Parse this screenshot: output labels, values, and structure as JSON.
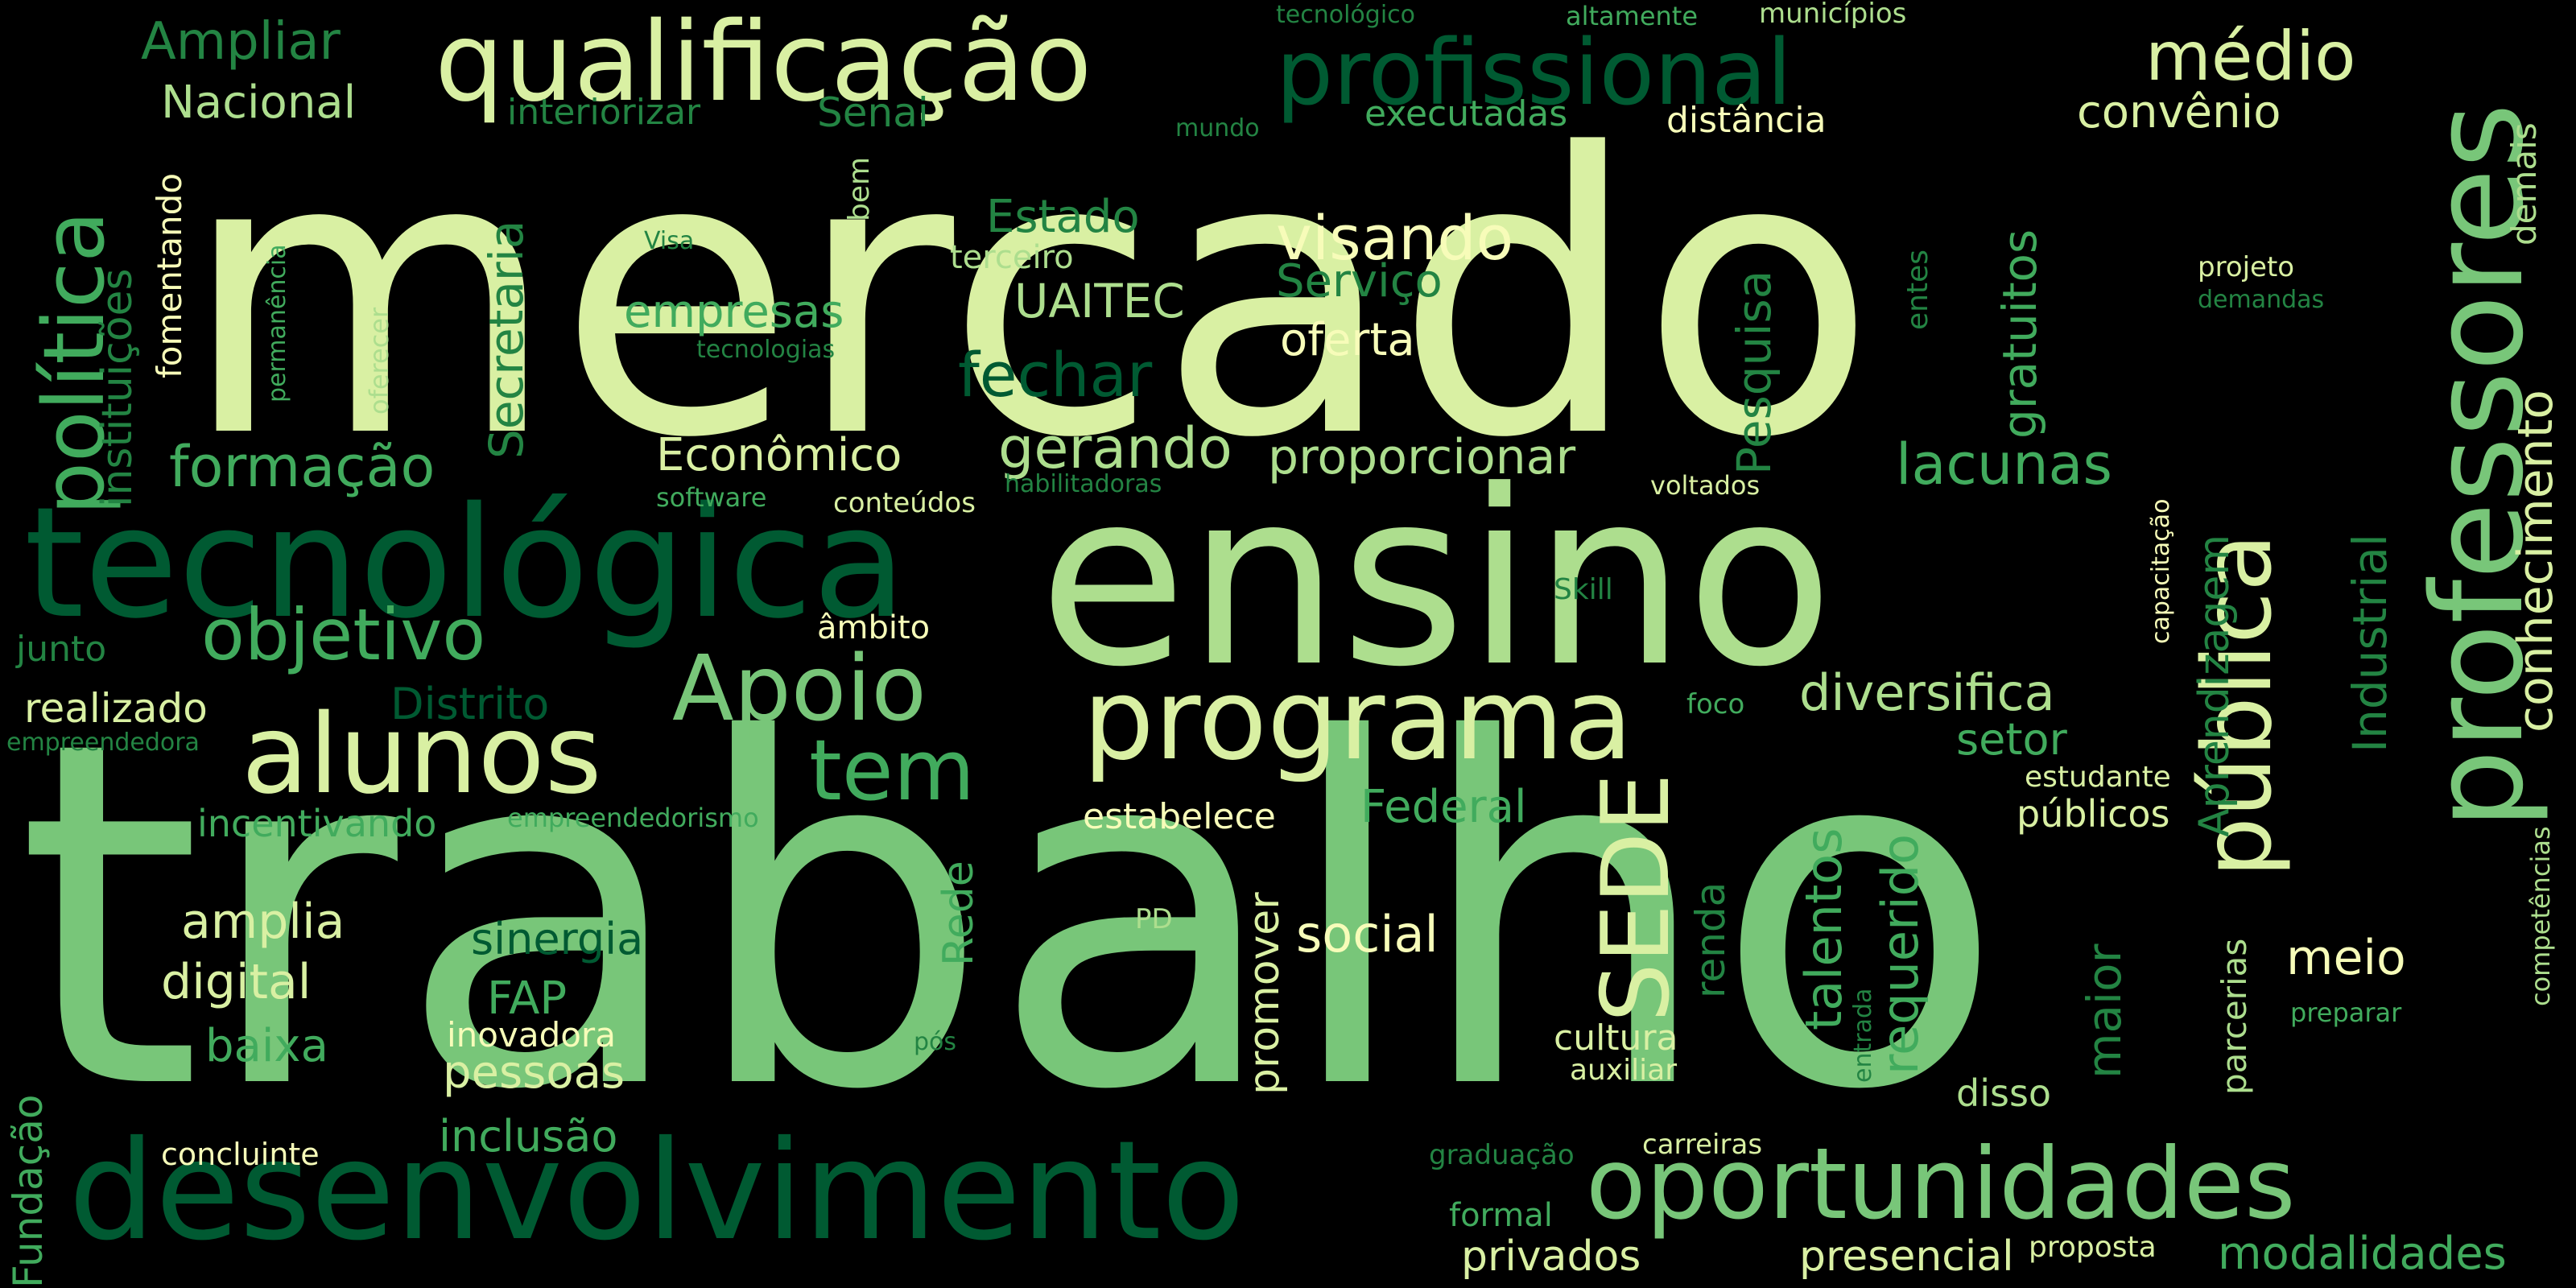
{
  "palette": {
    "background": "#000000",
    "pale": "#d9f0a3",
    "light": "#adde8e",
    "mid": "#78c679",
    "medium": "#41ab5d",
    "dark": "#238443",
    "deep": "#005a32",
    "cream": "#f7fcb9"
  },
  "words": [
    {
      "text": "mercado",
      "tone": "pale"
    },
    {
      "text": "trabalho",
      "tone": "mid"
    },
    {
      "text": "ensino",
      "tone": "light"
    },
    {
      "text": "tecnológica",
      "tone": "deep"
    },
    {
      "text": "desenvolvimento",
      "tone": "deep"
    },
    {
      "text": "qualificação",
      "tone": "pale"
    },
    {
      "text": "profissional",
      "tone": "deep"
    },
    {
      "text": "professores",
      "tone": "mid"
    },
    {
      "text": "política",
      "tone": "medium"
    },
    {
      "text": "programa",
      "tone": "pale"
    },
    {
      "text": "alunos",
      "tone": "pale"
    },
    {
      "text": "oportunidades",
      "tone": "mid"
    },
    {
      "text": "pública",
      "tone": "pale"
    },
    {
      "text": "Apoio",
      "tone": "mid"
    },
    {
      "text": "médio",
      "tone": "pale"
    },
    {
      "text": "objetivo",
      "tone": "medium"
    },
    {
      "text": "tem",
      "tone": "medium"
    },
    {
      "text": "visando",
      "tone": "cream"
    },
    {
      "text": "SEDE",
      "tone": "pale"
    },
    {
      "text": "instituições",
      "tone": "dark"
    },
    {
      "text": "Secretaria",
      "tone": "dark"
    },
    {
      "text": "Pesquisa",
      "tone": "dark"
    },
    {
      "text": "Ampliar",
      "tone": "dark"
    },
    {
      "text": "Nacional",
      "tone": "light"
    },
    {
      "text": "interiorizar",
      "tone": "dark"
    },
    {
      "text": "Senai",
      "tone": "dark"
    },
    {
      "text": "executadas",
      "tone": "medium"
    },
    {
      "text": "distância",
      "tone": "cream"
    },
    {
      "text": "convênio",
      "tone": "pale"
    },
    {
      "text": "tecnológico",
      "tone": "dark"
    },
    {
      "text": "altamente",
      "tone": "medium"
    },
    {
      "text": "municípios",
      "tone": "light"
    },
    {
      "text": "mundo",
      "tone": "dark"
    },
    {
      "text": "Estado",
      "tone": "dark"
    },
    {
      "text": "terceiro",
      "tone": "light"
    },
    {
      "text": "UAITEC",
      "tone": "light"
    },
    {
      "text": "Serviço",
      "tone": "dark"
    },
    {
      "text": "oferta",
      "tone": "cream"
    },
    {
      "text": "empresas",
      "tone": "medium"
    },
    {
      "text": "fechar",
      "tone": "deep"
    },
    {
      "text": "tecnologias",
      "tone": "dark"
    },
    {
      "text": "Visa",
      "tone": "dark"
    },
    {
      "text": "fomentando",
      "tone": "cream"
    },
    {
      "text": "permanência",
      "tone": "medium"
    },
    {
      "text": "oferecer",
      "tone": "light"
    },
    {
      "text": "bem",
      "tone": "light"
    },
    {
      "text": "entes",
      "tone": "dark"
    },
    {
      "text": "gratuitos",
      "tone": "medium"
    },
    {
      "text": "projeto",
      "tone": "pale"
    },
    {
      "text": "demandas",
      "tone": "dark"
    },
    {
      "text": "demais",
      "tone": "light"
    },
    {
      "text": "conhecimento",
      "tone": "pale"
    },
    {
      "text": "formação",
      "tone": "medium"
    },
    {
      "text": "Econômico",
      "tone": "pale"
    },
    {
      "text": "gerando",
      "tone": "light"
    },
    {
      "text": "proporcionar",
      "tone": "light"
    },
    {
      "text": "lacunas",
      "tone": "medium"
    },
    {
      "text": "software",
      "tone": "medium"
    },
    {
      "text": "conteúdos",
      "tone": "pale"
    },
    {
      "text": "habilitadoras",
      "tone": "dark"
    },
    {
      "text": "voltados",
      "tone": "pale"
    },
    {
      "text": "Aprendizagem",
      "tone": "dark"
    },
    {
      "text": "Industrial",
      "tone": "dark"
    },
    {
      "text": "capacitação",
      "tone": "cream"
    },
    {
      "text": "junto",
      "tone": "dark"
    },
    {
      "text": "âmbito",
      "tone": "cream"
    },
    {
      "text": "Skill",
      "tone": "dark"
    },
    {
      "text": "realizado",
      "tone": "pale"
    },
    {
      "text": "Distrito",
      "tone": "deep"
    },
    {
      "text": "diversifica",
      "tone": "light"
    },
    {
      "text": "foco",
      "tone": "medium"
    },
    {
      "text": "empreendedora",
      "tone": "dark"
    },
    {
      "text": "setor",
      "tone": "medium"
    },
    {
      "text": "estudante",
      "tone": "pale"
    },
    {
      "text": "incentivando",
      "tone": "medium"
    },
    {
      "text": "empreendedorismo",
      "tone": "medium"
    },
    {
      "text": "estabelece",
      "tone": "cream"
    },
    {
      "text": "Federal",
      "tone": "medium"
    },
    {
      "text": "públicos",
      "tone": "pale"
    },
    {
      "text": "requerido",
      "tone": "medium"
    },
    {
      "text": "talentos",
      "tone": "medium"
    },
    {
      "text": "renda",
      "tone": "dark"
    },
    {
      "text": "competências",
      "tone": "light"
    },
    {
      "text": "amplia",
      "tone": "pale"
    },
    {
      "text": "digital",
      "tone": "pale"
    },
    {
      "text": "sinergia",
      "tone": "deep"
    },
    {
      "text": "Rede",
      "tone": "medium"
    },
    {
      "text": "PD",
      "tone": "light"
    },
    {
      "text": "promover",
      "tone": "pale"
    },
    {
      "text": "social",
      "tone": "cream"
    },
    {
      "text": "meio",
      "tone": "cream"
    },
    {
      "text": "maior",
      "tone": "dark"
    },
    {
      "text": "parcerias",
      "tone": "light"
    },
    {
      "text": "preparar",
      "tone": "medium"
    },
    {
      "text": "FAP",
      "tone": "medium"
    },
    {
      "text": "baixa",
      "tone": "medium"
    },
    {
      "text": "inovadora",
      "tone": "cream"
    },
    {
      "text": "pessoas",
      "tone": "pale"
    },
    {
      "text": "pós",
      "tone": "dark"
    },
    {
      "text": "cultura",
      "tone": "pale"
    },
    {
      "text": "auxiliar",
      "tone": "pale"
    },
    {
      "text": "entrada",
      "tone": "dark"
    },
    {
      "text": "disso",
      "tone": "light"
    },
    {
      "text": "Fundação",
      "tone": "medium"
    },
    {
      "text": "inclusão",
      "tone": "medium"
    },
    {
      "text": "concluinte",
      "tone": "cream"
    },
    {
      "text": "graduação",
      "tone": "dark"
    },
    {
      "text": "carreiras",
      "tone": "pale"
    },
    {
      "text": "formal",
      "tone": "medium"
    },
    {
      "text": "privados",
      "tone": "pale"
    },
    {
      "text": "presencial",
      "tone": "pale"
    },
    {
      "text": "proposta",
      "tone": "pale"
    },
    {
      "text": "modalidades",
      "tone": "medium"
    }
  ]
}
